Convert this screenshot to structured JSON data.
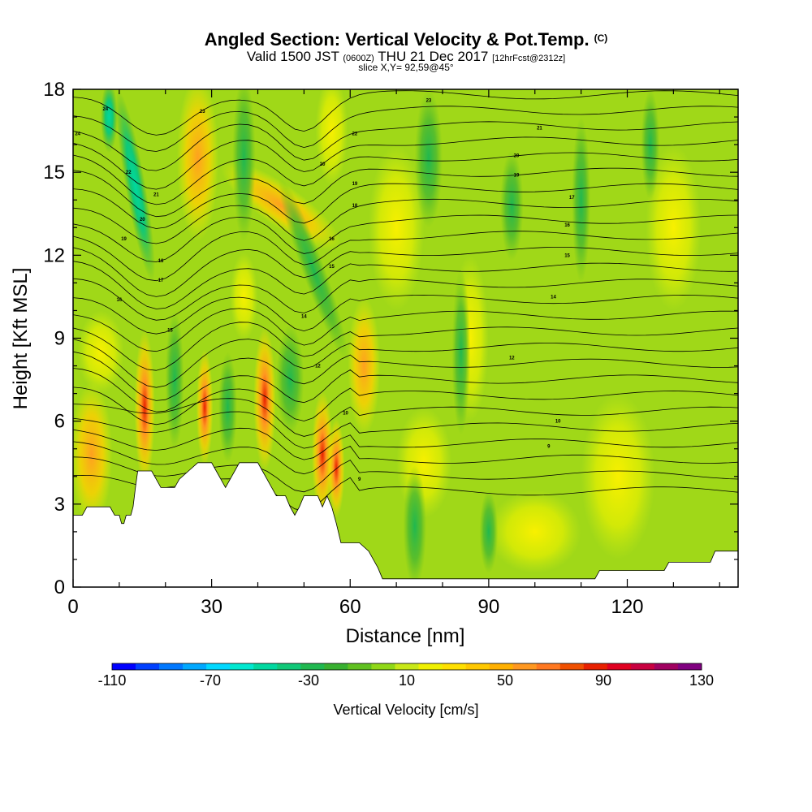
{
  "header": {
    "title": "Angled Section: Vertical Velocity & Pot.Temp.",
    "title_suffix": "(C)",
    "valid_prefix": "Valid 1500 JST",
    "valid_zulu": "(0600Z)",
    "valid_date": "THU 21 Dec 2017",
    "forecast_tag": "[12hrFcst@2312z]",
    "slice": "slice X,Y= 92,59@45°"
  },
  "chart_data": {
    "type": "heatmap",
    "xlabel": "Distance [nm]",
    "ylabel": "Height [Kft MSL]",
    "xlim": [
      0,
      144
    ],
    "ylim": [
      0,
      18
    ],
    "x_ticks": [
      0,
      30,
      60,
      90,
      120
    ],
    "y_ticks": [
      0,
      3,
      6,
      9,
      12,
      15,
      18
    ],
    "colorbar": {
      "label": "Vertical Velocity [cm/s]",
      "min": -110,
      "max": 130,
      "step": 10,
      "tick_values": [
        -110,
        -70,
        -30,
        10,
        50,
        90,
        130
      ],
      "colors": [
        "#0000ff",
        "#0040ff",
        "#0078ff",
        "#00a8ff",
        "#00d8ff",
        "#00e8d0",
        "#00d8a0",
        "#10c878",
        "#20b850",
        "#38b030",
        "#60c020",
        "#90d818",
        "#c8e818",
        "#f0f000",
        "#ffe000",
        "#ffc800",
        "#ffb000",
        "#ff9820",
        "#ff7820",
        "#f05000",
        "#e82000",
        "#e00020",
        "#c80040",
        "#a00060",
        "#800080"
      ]
    },
    "terrain": [
      [
        0,
        2.6
      ],
      [
        2,
        2.6
      ],
      [
        3,
        2.9
      ],
      [
        8,
        2.9
      ],
      [
        9,
        2.6
      ],
      [
        10,
        2.6
      ],
      [
        10.5,
        2.3
      ],
      [
        11,
        2.3
      ],
      [
        11.5,
        2.6
      ],
      [
        12.5,
        2.6
      ],
      [
        13,
        2.9
      ],
      [
        13.5,
        3.6
      ],
      [
        14,
        4.2
      ],
      [
        17,
        4.2
      ],
      [
        18,
        3.9
      ],
      [
        19,
        3.6
      ],
      [
        22,
        3.6
      ],
      [
        23,
        3.9
      ],
      [
        25,
        4.2
      ],
      [
        27,
        4.5
      ],
      [
        30,
        4.5
      ],
      [
        31,
        4.2
      ],
      [
        32,
        3.9
      ],
      [
        33,
        3.6
      ],
      [
        34,
        3.9
      ],
      [
        35,
        4.2
      ],
      [
        36,
        4.5
      ],
      [
        40,
        4.5
      ],
      [
        41,
        4.2
      ],
      [
        42,
        3.9
      ],
      [
        43,
        3.6
      ],
      [
        44,
        3.3
      ],
      [
        46,
        3.3
      ],
      [
        47,
        2.9
      ],
      [
        48,
        2.6
      ],
      [
        49,
        2.9
      ],
      [
        50,
        3.3
      ],
      [
        53,
        3.3
      ],
      [
        54,
        2.9
      ],
      [
        55,
        3.3
      ],
      [
        56,
        2.9
      ],
      [
        57,
        2.3
      ],
      [
        58,
        1.6
      ],
      [
        62,
        1.6
      ],
      [
        64,
        1.3
      ],
      [
        65,
        1.0
      ],
      [
        66,
        0.7
      ],
      [
        67,
        0.3
      ],
      [
        113,
        0.3
      ],
      [
        114,
        0.6
      ],
      [
        128,
        0.6
      ],
      [
        129,
        0.9
      ],
      [
        138,
        0.9
      ],
      [
        139,
        1.3
      ],
      [
        144,
        1.3
      ]
    ],
    "theta_labels": [
      {
        "x": 7,
        "y": 17.3,
        "text": "24"
      },
      {
        "x": 1,
        "y": 16.4,
        "text": "24"
      },
      {
        "x": 28,
        "y": 17.2,
        "text": "23"
      },
      {
        "x": 77,
        "y": 17.6,
        "text": "23"
      },
      {
        "x": 12,
        "y": 15.0,
        "text": "22"
      },
      {
        "x": 18,
        "y": 14.2,
        "text": "21"
      },
      {
        "x": 15,
        "y": 13.3,
        "text": "20"
      },
      {
        "x": 11,
        "y": 12.6,
        "text": "19"
      },
      {
        "x": 19,
        "y": 11.8,
        "text": "18"
      },
      {
        "x": 19,
        "y": 11.1,
        "text": "17"
      },
      {
        "x": 10,
        "y": 10.4,
        "text": "16"
      },
      {
        "x": 21,
        "y": 9.3,
        "text": "15"
      },
      {
        "x": 54,
        "y": 15.3,
        "text": "20"
      },
      {
        "x": 61,
        "y": 16.4,
        "text": "22"
      },
      {
        "x": 61,
        "y": 14.6,
        "text": "19"
      },
      {
        "x": 61,
        "y": 13.8,
        "text": "18"
      },
      {
        "x": 56,
        "y": 12.6,
        "text": "16"
      },
      {
        "x": 56,
        "y": 11.6,
        "text": "15"
      },
      {
        "x": 50,
        "y": 9.8,
        "text": "14"
      },
      {
        "x": 53,
        "y": 8.0,
        "text": "12"
      },
      {
        "x": 59,
        "y": 6.3,
        "text": "10"
      },
      {
        "x": 62,
        "y": 3.9,
        "text": "9"
      },
      {
        "x": 101,
        "y": 16.6,
        "text": "21"
      },
      {
        "x": 96,
        "y": 15.6,
        "text": "20"
      },
      {
        "x": 96,
        "y": 14.9,
        "text": "19"
      },
      {
        "x": 108,
        "y": 14.1,
        "text": "17"
      },
      {
        "x": 107,
        "y": 13.1,
        "text": "16"
      },
      {
        "x": 107,
        "y": 12.0,
        "text": "15"
      },
      {
        "x": 104,
        "y": 10.5,
        "text": "14"
      },
      {
        "x": 95,
        "y": 8.3,
        "text": "12"
      },
      {
        "x": 105,
        "y": 6.0,
        "text": "10"
      },
      {
        "x": 103,
        "y": 5.1,
        "text": "9"
      }
    ]
  }
}
